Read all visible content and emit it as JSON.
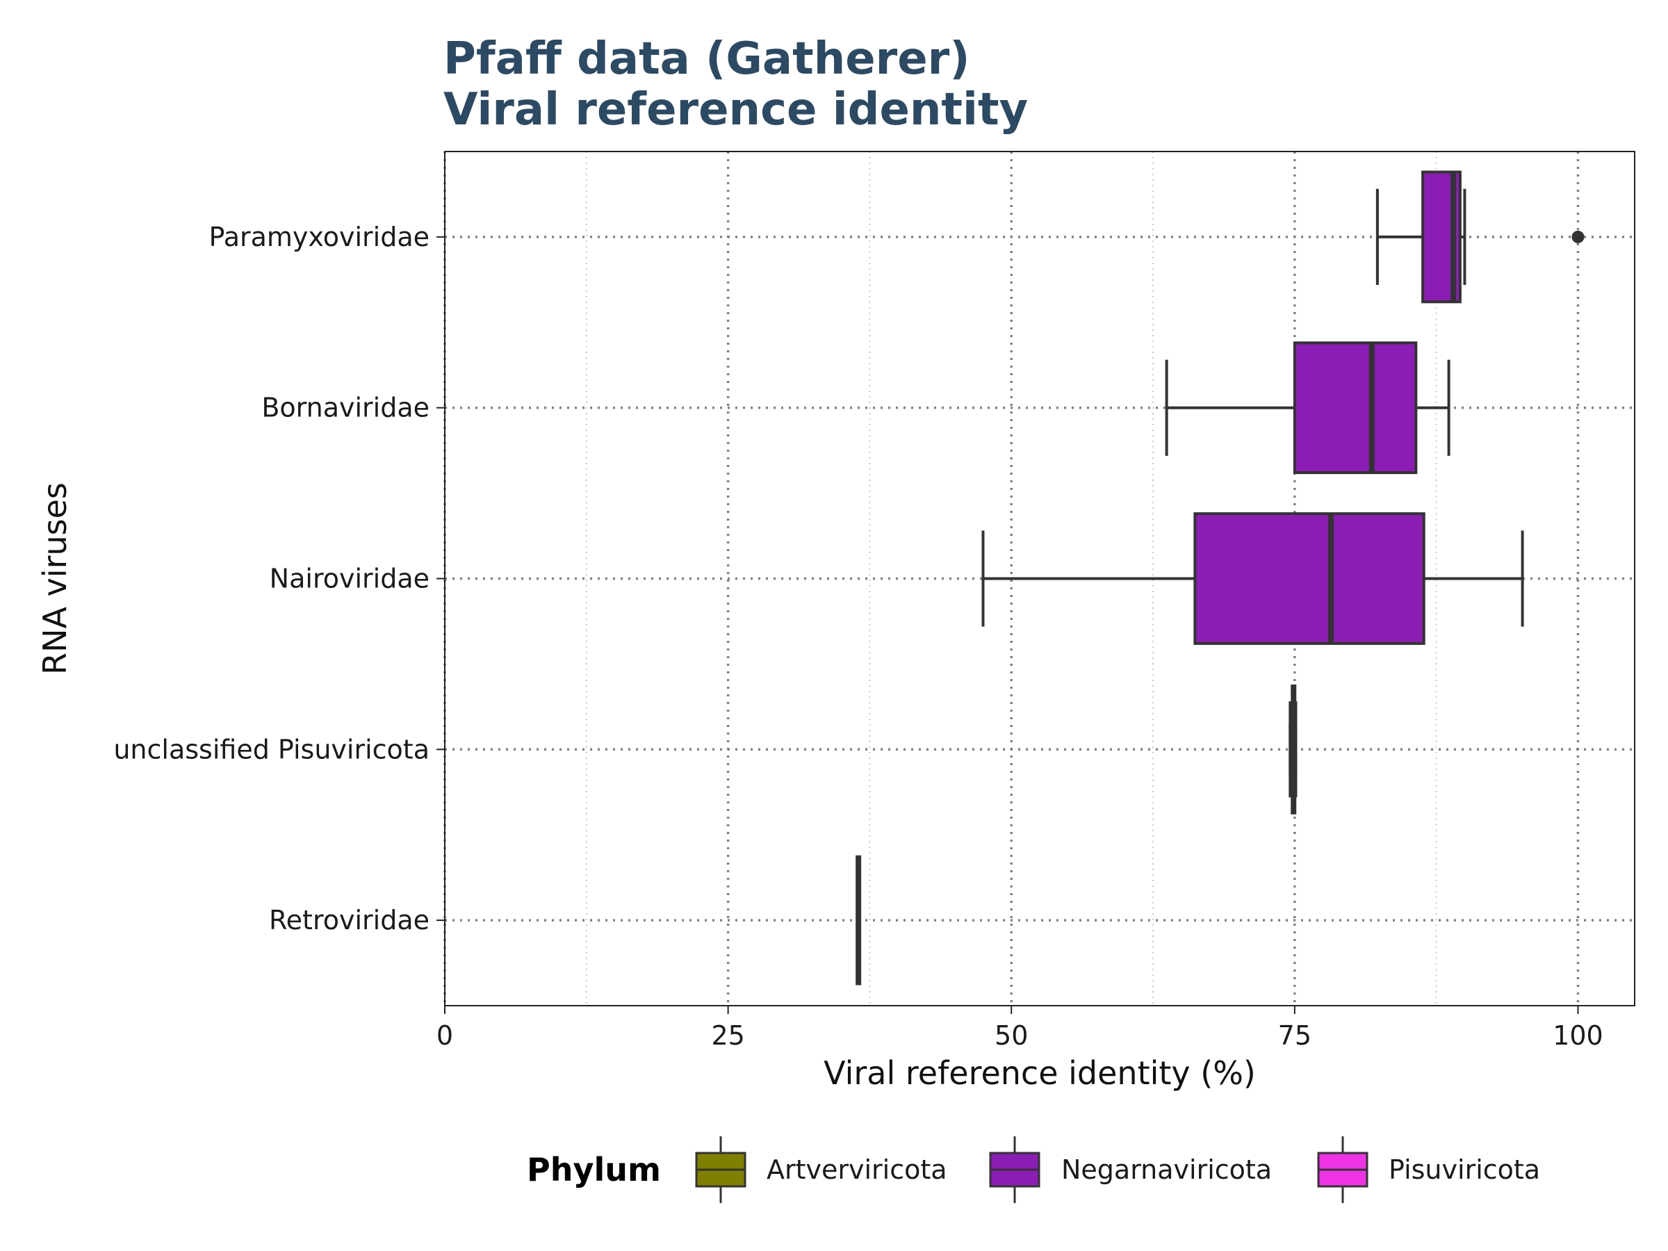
{
  "chart_data": {
    "type": "box",
    "title_lines": [
      "Pfaff data (Gatherer)",
      "Viral reference identity"
    ],
    "xlabel": "Viral reference identity (%)",
    "ylabel": "RNA viruses",
    "xlim": [
      0,
      105
    ],
    "x_ticks": [
      0,
      25,
      50,
      75,
      100
    ],
    "x_tick_labels": [
      "0",
      "25",
      "50",
      "75",
      "100"
    ],
    "categories": [
      "Paramyxoviridae",
      "Bornaviridae",
      "Nairoviridae",
      "unclassified Pisuviricota",
      "Retroviridae"
    ],
    "boxes": [
      {
        "category": "Paramyxoviridae",
        "phylum": "Negarnaviricota",
        "whisker_low": 82.3,
        "q1": 86.3,
        "median": 89.0,
        "q3": 89.6,
        "whisker_high": 90.0,
        "outliers": [
          100
        ]
      },
      {
        "category": "Bornaviridae",
        "phylum": "Negarnaviricota",
        "whisker_low": 63.7,
        "q1": 75.0,
        "median": 81.8,
        "q3": 85.7,
        "whisker_high": 88.6,
        "outliers": []
      },
      {
        "category": "Nairoviridae",
        "phylum": "Negarnaviricota",
        "whisker_low": 47.5,
        "q1": 66.2,
        "median": 78.2,
        "q3": 86.4,
        "whisker_high": 95.1,
        "outliers": []
      },
      {
        "category": "unclassified Pisuviricota",
        "phylum": "Pisuviricota",
        "whisker_low": 74.6,
        "q1": 74.6,
        "median": 74.9,
        "q3": 75.1,
        "whisker_high": 75.1,
        "outliers": []
      },
      {
        "category": "Retroviridae",
        "phylum": "Artverviricota",
        "whisker_low": 36.5,
        "q1": 36.5,
        "median": 36.5,
        "q3": 36.5,
        "whisker_high": 36.5,
        "outliers": []
      }
    ],
    "legend": {
      "title": "Phylum",
      "placement": "bottom",
      "entries": [
        {
          "label": "Artverviricota",
          "color": "#808000"
        },
        {
          "label": "Negarnaviricota",
          "color": "#8b1db5"
        },
        {
          "label": "Pisuviricota",
          "color": "#f032e6"
        }
      ]
    },
    "grid": {
      "major": true,
      "minor": true,
      "style": "dotted"
    },
    "colors": {
      "title": "#2c4a63",
      "box_edge": "#333333",
      "grid": "#808080"
    }
  }
}
